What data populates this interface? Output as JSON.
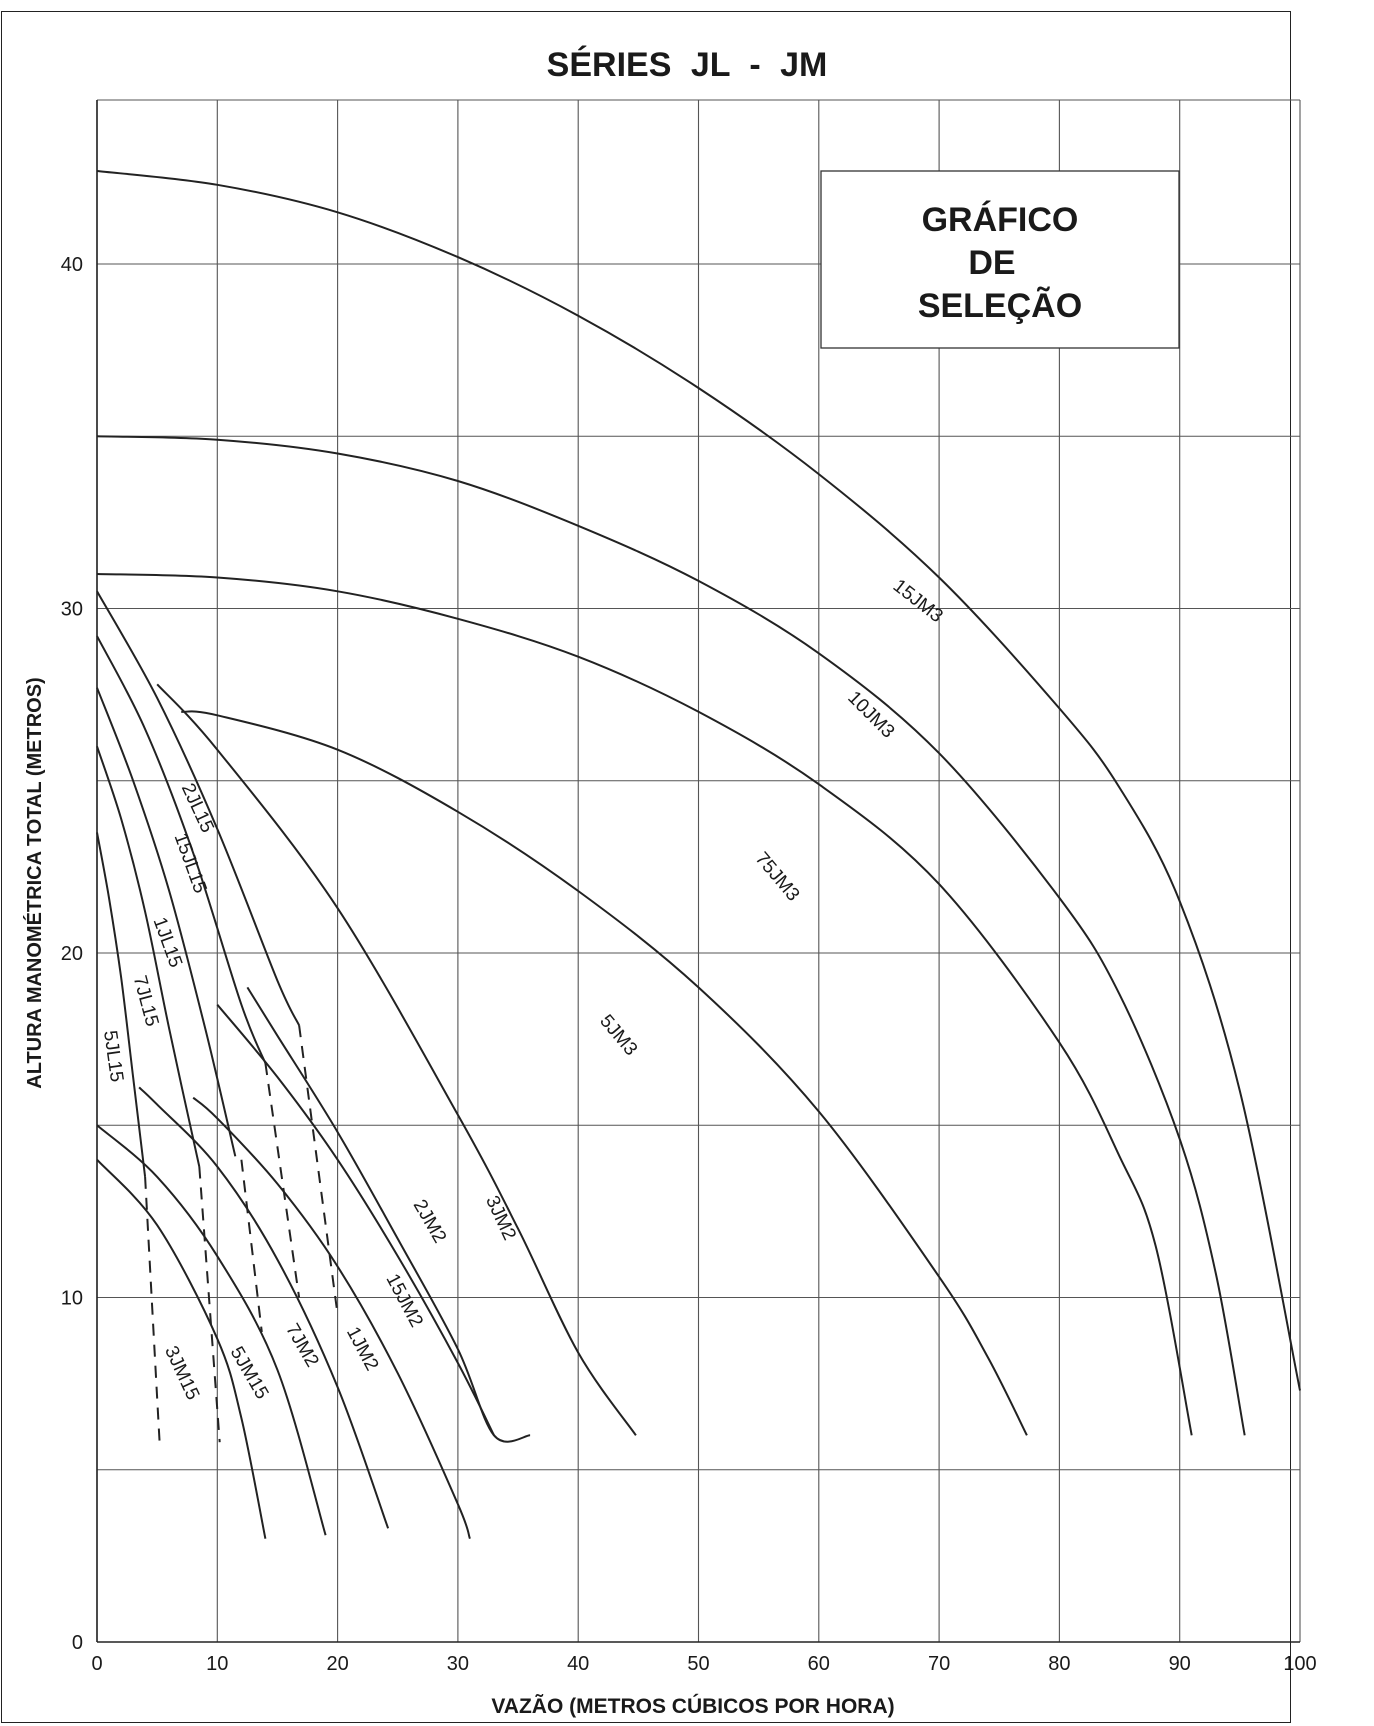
{
  "chart_data": {
    "type": "line",
    "title": "SÉRIES   JL - JM",
    "xlabel": "VAZÃO (METROS CÚBICOS POR HORA)",
    "ylabel": "ALTURA MANOMÉTRICA TOTAL (METROS)",
    "xlim": [
      0,
      100
    ],
    "ylim": [
      0,
      45
    ],
    "xticks": [
      "0",
      "10",
      "20",
      "30",
      "40",
      "50",
      "60",
      "70",
      "80",
      "90",
      "100"
    ],
    "yticks": [
      "0",
      "10",
      "20",
      "30",
      "40"
    ],
    "grid": true,
    "box_lines": [
      "GRÁFICO",
      "DE",
      "SELEÇÃO"
    ],
    "series": [
      {
        "name": "15JM3",
        "x": [
          0,
          10,
          20,
          30,
          40,
          50,
          60,
          70,
          80,
          85,
          90,
          95,
          100
        ],
        "y": [
          42.7,
          42.3,
          41.5,
          40.2,
          38.5,
          36.4,
          33.9,
          30.9,
          27.1,
          24.8,
          21.5,
          16.0,
          7.3
        ]
      },
      {
        "name": "10JM3",
        "x": [
          0,
          10,
          20,
          30,
          40,
          50,
          60,
          70,
          80,
          85,
          90,
          93,
          95.4
        ],
        "y": [
          35.0,
          34.9,
          34.5,
          33.7,
          32.4,
          30.8,
          28.7,
          25.8,
          21.6,
          18.8,
          14.6,
          10.7,
          6.0
        ]
      },
      {
        "name": "75JM3",
        "x": [
          0,
          10,
          20,
          30,
          40,
          50,
          60,
          70,
          80,
          85,
          88,
          91
        ],
        "y": [
          31.0,
          30.9,
          30.5,
          29.7,
          28.6,
          27.0,
          24.9,
          22.0,
          17.4,
          14.1,
          11.5,
          6.0
        ]
      },
      {
        "name": "5JM3",
        "x": [
          7,
          10,
          20,
          30,
          40,
          50,
          60,
          70,
          74,
          77.3
        ],
        "y": [
          27.0,
          26.9,
          25.9,
          24.1,
          21.8,
          19.0,
          15.4,
          10.6,
          8.3,
          6.0
        ]
      },
      {
        "name": "3JM2",
        "x": [
          5,
          10,
          20,
          30,
          35,
          40,
          44.8
        ],
        "y": [
          27.8,
          25.9,
          21.3,
          15.3,
          12.0,
          8.4,
          6.0
        ]
      },
      {
        "name": "2JL15",
        "x": [
          0,
          5,
          10,
          15,
          16.8
        ],
        "y": [
          30.5,
          27.4,
          23.6,
          19.2,
          17.9
        ]
      },
      {
        "name": "15JL15",
        "x": [
          0,
          4,
          8,
          12,
          14.0
        ],
        "y": [
          29.2,
          26.5,
          22.9,
          18.5,
          16.8
        ]
      },
      {
        "name": "1JL15",
        "x": [
          0,
          3,
          6,
          9,
          11.5
        ],
        "y": [
          27.7,
          25.0,
          21.8,
          17.8,
          14.1
        ]
      },
      {
        "name": "7JL15",
        "x": [
          0,
          2,
          4,
          6,
          8.5
        ],
        "y": [
          26.0,
          23.9,
          21.2,
          17.8,
          13.8
        ]
      },
      {
        "name": "5JL15",
        "x": [
          0,
          1,
          2,
          3,
          4
        ],
        "y": [
          23.5,
          21.6,
          19.3,
          16.4,
          13.5
        ]
      },
      {
        "name": "2JM2",
        "x": [
          12.5,
          15,
          20,
          25,
          30,
          33,
          36
        ],
        "y": [
          19.0,
          17.6,
          14.8,
          11.7,
          8.5,
          6.0,
          6.0
        ]
      },
      {
        "name": "15JM2",
        "x": [
          10,
          15,
          20,
          25,
          30,
          33
        ],
        "y": [
          18.5,
          16.4,
          14.0,
          11.2,
          8.1,
          6.0
        ]
      },
      {
        "name": "1JM2",
        "x": [
          8,
          10,
          15,
          20,
          25,
          30,
          31
        ],
        "y": [
          15.8,
          15.2,
          13.3,
          10.9,
          7.8,
          4.0,
          3.0
        ]
      },
      {
        "name": "7JM2",
        "x": [
          3.5,
          5,
          10,
          15,
          20,
          24.2
        ],
        "y": [
          16.1,
          15.6,
          13.8,
          11.1,
          7.4,
          3.3
        ]
      },
      {
        "name": "5JM15",
        "x": [
          0,
          5,
          10,
          15,
          19
        ],
        "y": [
          15.0,
          13.5,
          11.2,
          7.9,
          3.1
        ]
      },
      {
        "name": "3JM15",
        "x": [
          0,
          5,
          10,
          12,
          14
        ],
        "y": [
          14.0,
          12.1,
          8.8,
          6.5,
          3.0
        ]
      }
    ],
    "dashed_links": [
      {
        "x": [
          4,
          5.2
        ],
        "y": [
          13.5,
          5.8
        ]
      },
      {
        "x": [
          8.5,
          10.2
        ],
        "y": [
          13.8,
          5.8
        ]
      },
      {
        "x": [
          12.0,
          13.7
        ],
        "y": [
          14.0,
          9.0
        ]
      },
      {
        "x": [
          14.0,
          16.8
        ],
        "y": [
          16.8,
          10.0
        ]
      },
      {
        "x": [
          16.8,
          20.0
        ],
        "y": [
          17.9,
          9.5
        ]
      }
    ]
  }
}
